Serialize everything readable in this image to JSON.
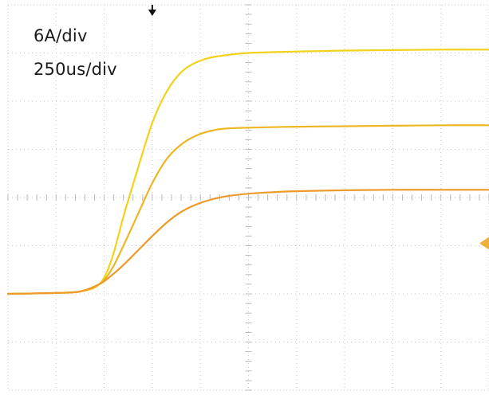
{
  "scale_labels": {
    "amplitude": "6A/div",
    "time": "250us/div"
  },
  "colors": {
    "background": "#ffffff",
    "grid": "#c9c9c9",
    "trace_bright": "#f2d21b",
    "trace_mid": "#edb622",
    "trace_orange": "#ec9a2a",
    "marker": "#111111",
    "level_marker": "#eeb03a"
  },
  "icons": {
    "trigger_marker": "down-arrow-icon",
    "level_marker": "left-triangle-icon"
  },
  "chart_data": {
    "type": "line",
    "title": "",
    "xlabel": "",
    "ylabel": "",
    "x_unit": "div",
    "y_unit": "div",
    "xlim": [
      0,
      10
    ],
    "ylim": [
      -4,
      4
    ],
    "grid": true,
    "series": [
      {
        "color": "#f2d21b",
        "x": [
          0,
          1.0,
          1.5,
          1.9,
          2.15,
          2.4,
          2.7,
          3.0,
          3.3,
          3.6,
          3.9,
          4.2,
          4.5,
          5.0,
          6.0,
          7.0,
          8.0,
          9.0,
          10.0
        ],
        "y": [
          -2.0,
          -1.98,
          -1.95,
          -1.8,
          -1.3,
          -0.4,
          0.6,
          1.55,
          2.2,
          2.6,
          2.8,
          2.9,
          2.95,
          3.0,
          3.03,
          3.05,
          3.06,
          3.07,
          3.07
        ]
      },
      {
        "color": "#edb622",
        "x": [
          0,
          1.0,
          1.5,
          1.9,
          2.15,
          2.4,
          2.7,
          3.0,
          3.3,
          3.6,
          3.9,
          4.2,
          4.5,
          5.0,
          6.0,
          7.0,
          8.0,
          9.0,
          10.0
        ],
        "y": [
          -2.0,
          -1.98,
          -1.95,
          -1.8,
          -1.5,
          -1.0,
          -0.35,
          0.3,
          0.8,
          1.1,
          1.28,
          1.38,
          1.43,
          1.45,
          1.47,
          1.48,
          1.49,
          1.5,
          1.5
        ]
      },
      {
        "color": "#ec9a2a",
        "x": [
          0,
          1.0,
          1.5,
          1.9,
          2.15,
          2.4,
          2.7,
          3.0,
          3.3,
          3.6,
          3.9,
          4.2,
          4.5,
          5.0,
          5.5,
          6.0,
          7.0,
          8.0,
          9.0,
          10.0
        ],
        "y": [
          -2.0,
          -1.98,
          -1.95,
          -1.8,
          -1.62,
          -1.4,
          -1.1,
          -0.8,
          -0.52,
          -0.3,
          -0.15,
          -0.05,
          0.02,
          0.08,
          0.11,
          0.13,
          0.15,
          0.16,
          0.16,
          0.16
        ]
      }
    ],
    "trigger_position_div": 3.0,
    "trigger_level_div": -0.95
  }
}
